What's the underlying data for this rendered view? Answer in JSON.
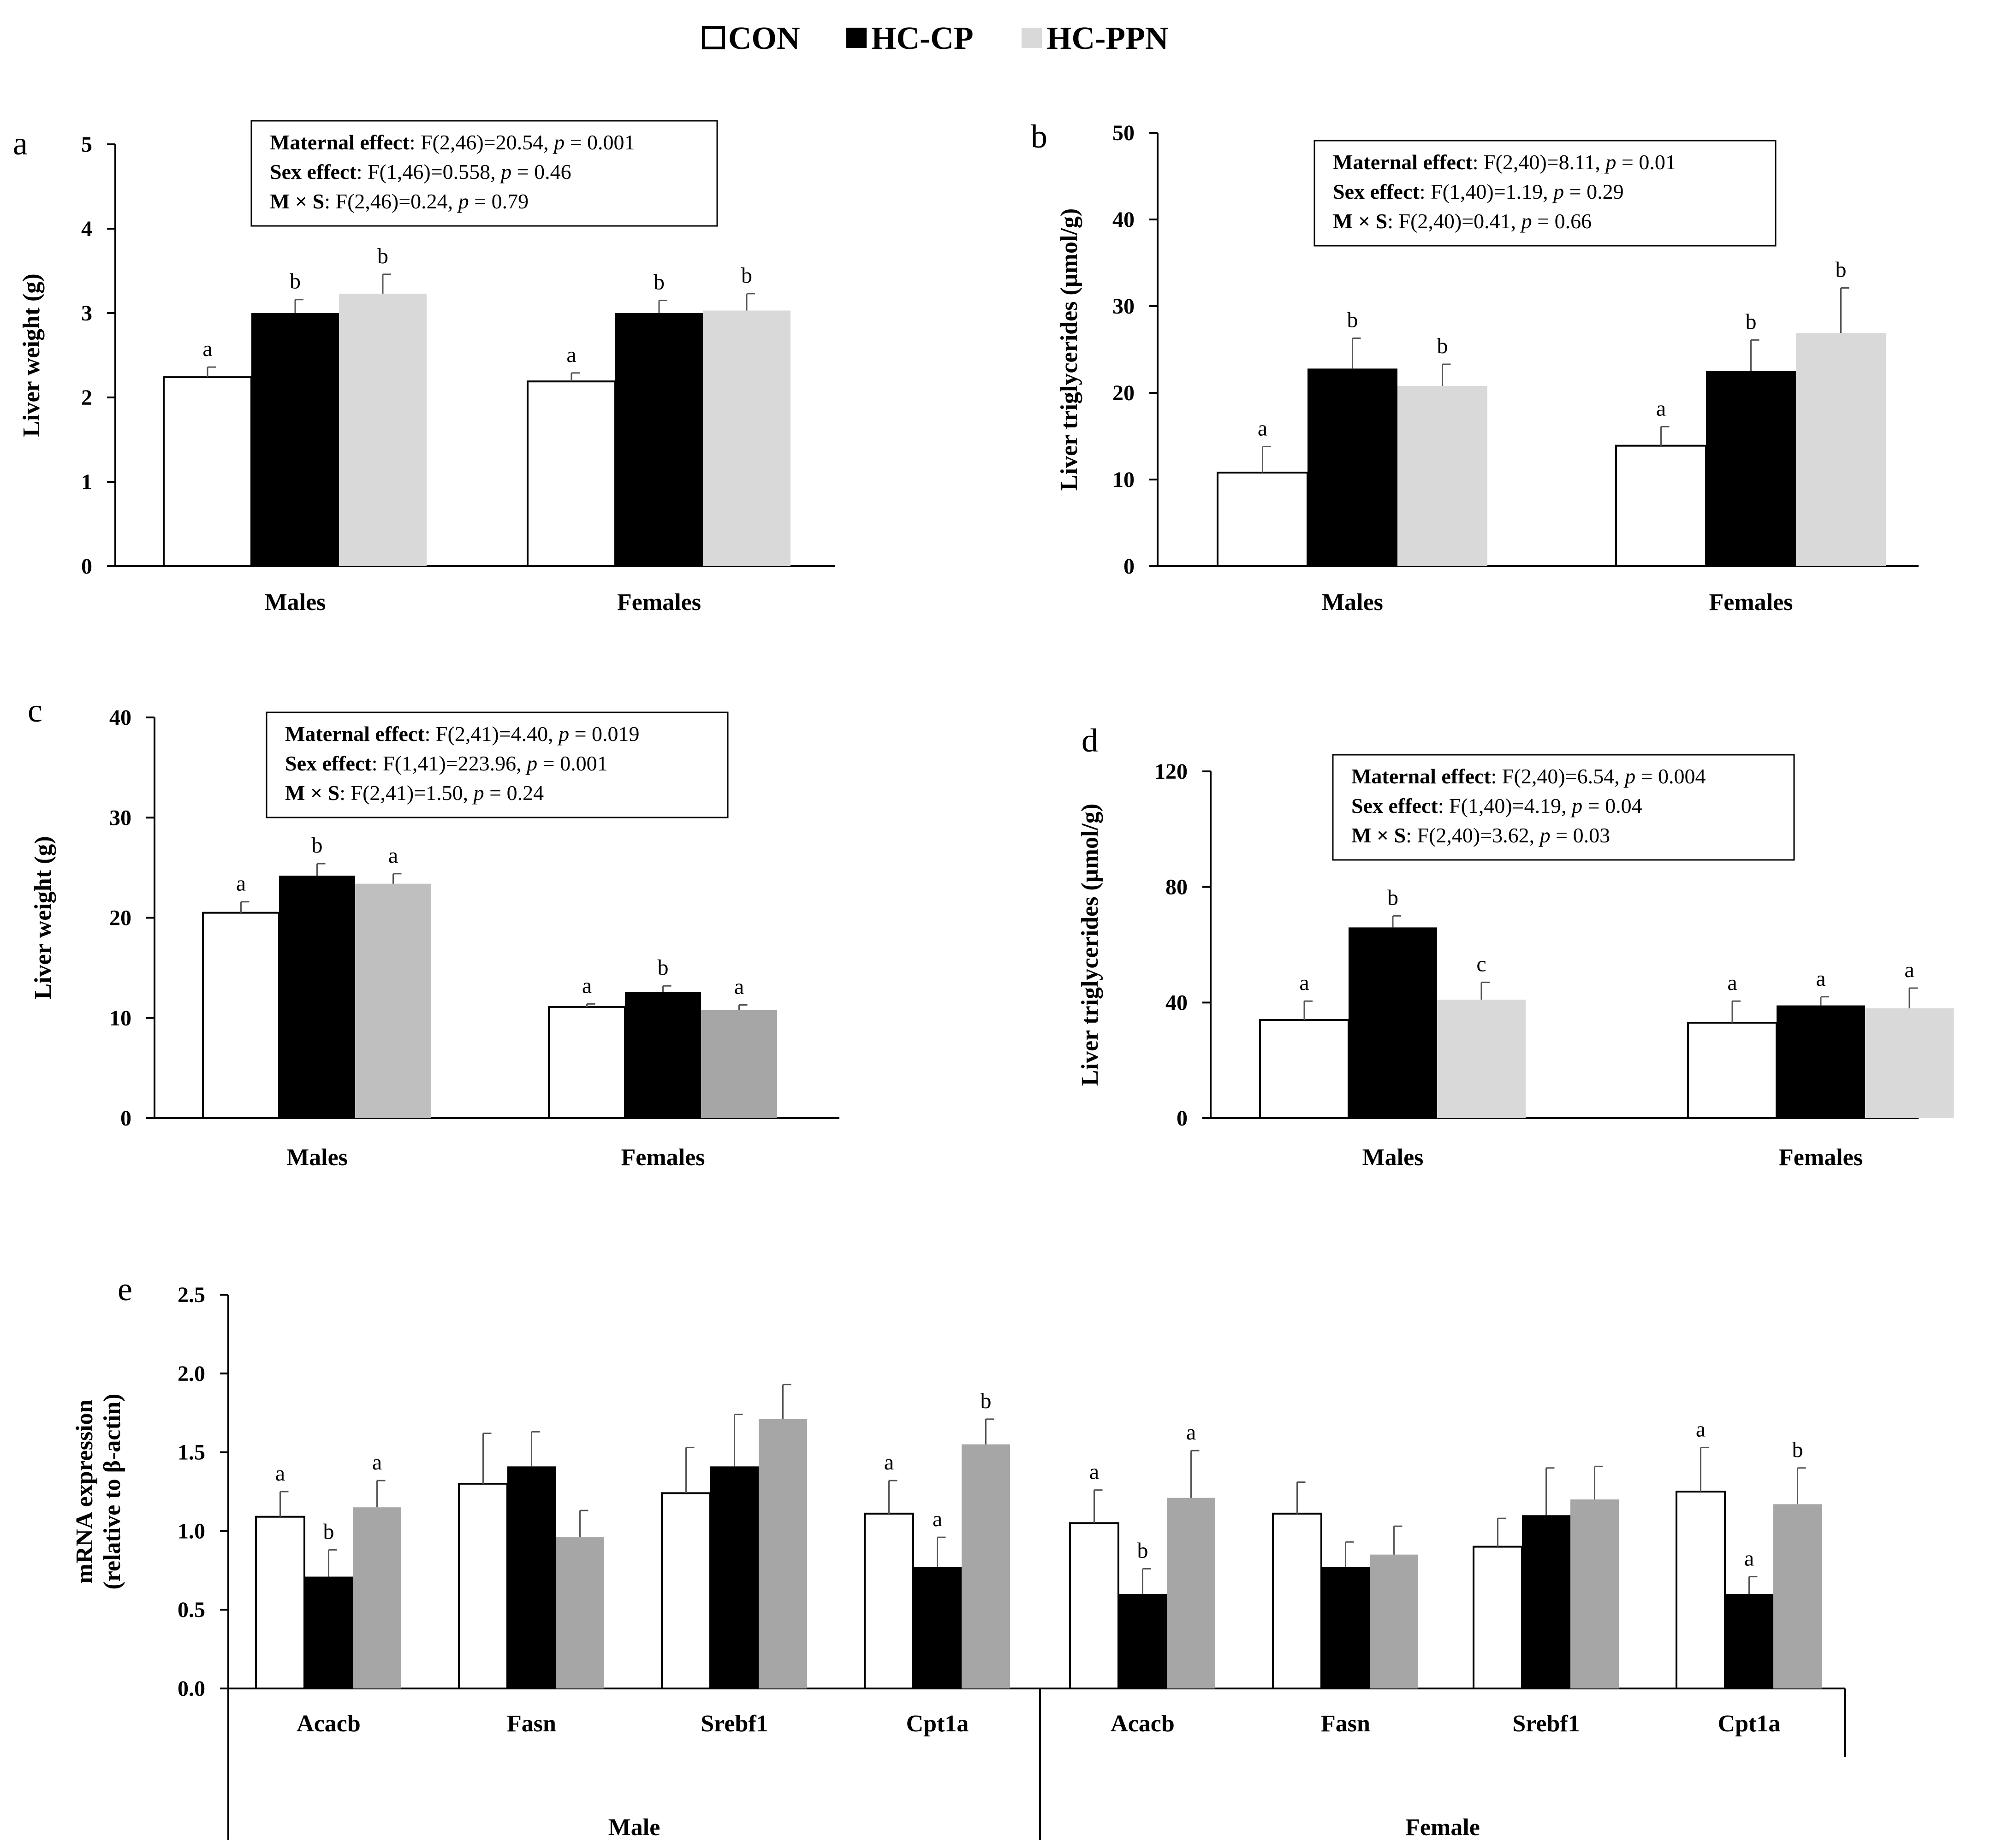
{
  "legend": [
    {
      "label": "CON",
      "color": "#ffffff"
    },
    {
      "label": "HC-CP",
      "color": "#000000"
    },
    {
      "label": "HC-PPN",
      "color": "#d9d9d9"
    }
  ],
  "chart_data": [
    {
      "id": "a",
      "type": "bar",
      "panel_label": "a",
      "ylabel": "Liver weight (g)",
      "ylim": [
        0,
        5
      ],
      "yticks": [
        0,
        1,
        2,
        3,
        4,
        5
      ],
      "categories": [
        "Males",
        "Females"
      ],
      "series": [
        {
          "name": "CON",
          "color": "#ffffff",
          "values": [
            2.24,
            2.19
          ],
          "errors": [
            0.12,
            0.1
          ],
          "sig": [
            "a",
            "a"
          ]
        },
        {
          "name": "HC-CP",
          "color": "#000000",
          "values": [
            3.0,
            3.0
          ],
          "errors": [
            0.16,
            0.15
          ],
          "sig": [
            "b",
            "b"
          ]
        },
        {
          "name": "HC-PPN",
          "color": "#d9d9d9",
          "values": [
            3.23,
            3.03
          ],
          "errors": [
            0.23,
            0.2
          ],
          "sig": [
            "b",
            "b"
          ]
        }
      ],
      "stats": [
        {
          "bold": "Maternal effect",
          "pre": ": F(2,46)=20.54, ",
          "p": "p",
          "post": " = 0.001"
        },
        {
          "bold": "Sex effect",
          "pre": ": F(1,46)=0.558, ",
          "p": "p",
          "post": " = 0.46"
        },
        {
          "bold": "M × S",
          "pre": ": F(2,46)=0.24, ",
          "p": "p",
          "post": " = 0.79"
        }
      ]
    },
    {
      "id": "b",
      "type": "bar",
      "panel_label": "b",
      "ylabel": "Liver triglycerides (µmol/g)",
      "ylim": [
        0,
        50
      ],
      "yticks": [
        0,
        10,
        20,
        30,
        40,
        50
      ],
      "categories": [
        "Males",
        "Females"
      ],
      "series": [
        {
          "name": "CON",
          "color": "#ffffff",
          "values": [
            10.8,
            13.9
          ],
          "errors": [
            3.0,
            2.2
          ],
          "sig": [
            "a",
            "a"
          ]
        },
        {
          "name": "HC-CP",
          "color": "#000000",
          "values": [
            22.8,
            22.5
          ],
          "errors": [
            3.5,
            3.6
          ],
          "sig": [
            "b",
            "b"
          ]
        },
        {
          "name": "HC-PPN",
          "color": "#d9d9d9",
          "values": [
            20.8,
            26.9
          ],
          "errors": [
            2.5,
            5.2
          ],
          "sig": [
            "b",
            "b"
          ]
        }
      ],
      "stats": [
        {
          "bold": "Maternal effect",
          "pre": ": F(2,40)=8.11, ",
          "p": "p",
          "post": " = 0.01"
        },
        {
          "bold": "Sex effect",
          "pre": ": F(1,40)=1.19, ",
          "p": "p",
          "post": " = 0.29"
        },
        {
          "bold": "M × S",
          "pre": ": F(2,40)=0.41, ",
          "p": "p",
          "post": " = 0.66"
        }
      ]
    },
    {
      "id": "c",
      "type": "bar",
      "panel_label": "c",
      "ylabel": "Liver weight (g)",
      "ylim": [
        0,
        40
      ],
      "yticks": [
        0,
        10,
        20,
        30,
        40
      ],
      "categories": [
        "Males",
        "Females"
      ],
      "series": [
        {
          "name": "CON",
          "color": "#ffffff",
          "values": [
            20.5,
            11.1
          ],
          "errors": [
            1.1,
            0.3
          ],
          "sig": [
            "a",
            "a"
          ]
        },
        {
          "name": "HC-CP",
          "color": "#000000",
          "values": [
            24.2,
            12.6
          ],
          "errors": [
            1.2,
            0.6
          ],
          "sig": [
            "b",
            "b"
          ]
        },
        {
          "name": "HC-PPN",
          "color": "#bfbfbf",
          "bar_colors": [
            "#bfbfbf",
            "#a6a6a6"
          ],
          "values": [
            23.4,
            10.8
          ],
          "errors": [
            1.0,
            0.5
          ],
          "sig": [
            "a",
            "a"
          ]
        }
      ],
      "stats": [
        {
          "bold": "Maternal effect",
          "pre": ": F(2,41)=4.40, ",
          "p": "p",
          "post": " = 0.019"
        },
        {
          "bold": "Sex effect",
          "pre": ": F(1,41)=223.96, ",
          "p": "p",
          "post": " = 0.001"
        },
        {
          "bold": "M × S",
          "pre": ": F(2,41)=1.50, ",
          "p": "p",
          "post": " = 0.24"
        }
      ]
    },
    {
      "id": "d",
      "type": "bar",
      "panel_label": "d",
      "ylabel": "Liver triglycerides (µmol/g)",
      "ylim": [
        0,
        120
      ],
      "yticks": [
        0,
        40,
        80,
        120
      ],
      "categories": [
        "Males",
        "Females"
      ],
      "series": [
        {
          "name": "CON",
          "color": "#ffffff",
          "values": [
            34,
            33
          ],
          "errors": [
            6.5,
            7.5
          ],
          "sig": [
            "a",
            "a"
          ]
        },
        {
          "name": "HC-CP",
          "color": "#000000",
          "values": [
            66,
            39
          ],
          "errors": [
            4.0,
            3.0
          ],
          "sig": [
            "b",
            "a"
          ]
        },
        {
          "name": "HC-PPN",
          "color": "#d9d9d9",
          "values": [
            41,
            38
          ],
          "errors": [
            6.0,
            7.0
          ],
          "sig": [
            "c",
            "a"
          ]
        }
      ],
      "stats": [
        {
          "bold": "Maternal effect",
          "pre": ": F(2,40)=6.54, ",
          "p": "p",
          "post": " = 0.004"
        },
        {
          "bold": "Sex effect",
          "pre": ": F(1,40)=4.19, ",
          "p": "p",
          "post": " = 0.04"
        },
        {
          "bold": "M × S",
          "pre": ": F(2,40)=3.62, ",
          "p": "p",
          "post": " = 0.03"
        }
      ]
    },
    {
      "id": "e",
      "type": "bar",
      "panel_label": "e",
      "ylabel": [
        "mRNA expression",
        "(relative to β-actin)"
      ],
      "ylim": [
        0,
        2.5
      ],
      "yticks": [
        "0.0",
        "0.5",
        "1.0",
        "1.5",
        "2.0",
        "2.5"
      ],
      "categories": [
        "Acacb",
        "Fasn",
        "Srebf1",
        "Cpt1a",
        "Acacb",
        "Fasn",
        "Srebf1",
        "Cpt1a"
      ],
      "groups": [
        "Male",
        "Female"
      ],
      "series": [
        {
          "name": "CON",
          "color": "#ffffff",
          "values": [
            1.09,
            1.3,
            1.24,
            1.11,
            1.05,
            1.11,
            0.9,
            1.25
          ],
          "errors": [
            0.16,
            0.32,
            0.29,
            0.21,
            0.21,
            0.2,
            0.18,
            0.28
          ],
          "sig": [
            "a",
            "",
            "",
            "a",
            "a",
            "",
            "",
            "a"
          ]
        },
        {
          "name": "HC-CP",
          "color": "#000000",
          "values": [
            0.71,
            1.41,
            1.41,
            0.77,
            0.6,
            0.77,
            1.1,
            0.6
          ],
          "errors": [
            0.17,
            0.22,
            0.33,
            0.19,
            0.16,
            0.16,
            0.3,
            0.11
          ],
          "sig": [
            "b",
            "",
            "",
            "a",
            "b",
            "",
            "",
            "a"
          ]
        },
        {
          "name": "HC-PPN",
          "color": "#a6a6a6",
          "values": [
            1.15,
            0.96,
            1.71,
            1.55,
            1.21,
            0.85,
            1.2,
            1.17
          ],
          "errors": [
            0.17,
            0.17,
            0.22,
            0.16,
            0.3,
            0.18,
            0.21,
            0.23
          ],
          "sig": [
            "a",
            "",
            "",
            "b",
            "a",
            "",
            "",
            "b"
          ]
        }
      ]
    }
  ]
}
